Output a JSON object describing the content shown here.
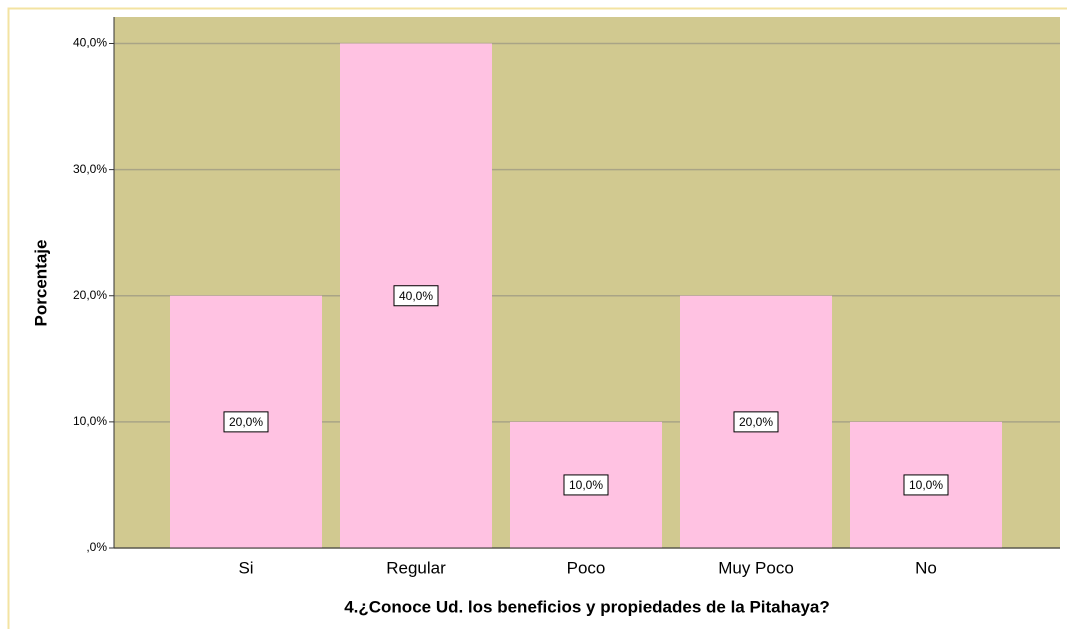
{
  "chart_data": {
    "type": "bar",
    "x_label": "4.¿Conoce Ud. los beneficios y propiedades de la Pitahaya?",
    "y_label": "Porcentaje",
    "categories": [
      "Si",
      "Regular",
      "Poco",
      "Muy Poco",
      "No"
    ],
    "values": [
      20,
      40,
      10,
      20,
      10
    ],
    "value_labels": [
      "20,0%",
      "40,0%",
      "10,0%",
      "20,0%",
      "10,0%"
    ],
    "color": "#ffc2e2",
    "background": "#d1c990",
    "ylim": [
      0,
      42.1
    ],
    "yticks": [
      {
        "value": 0,
        "label": ",0%"
      },
      {
        "value": 10,
        "label": "10,0%"
      },
      {
        "value": 20,
        "label": "20,0%"
      },
      {
        "value": 30,
        "label": "30,0%"
      },
      {
        "value": 40,
        "label": "40,0%"
      }
    ],
    "grid": true
  }
}
